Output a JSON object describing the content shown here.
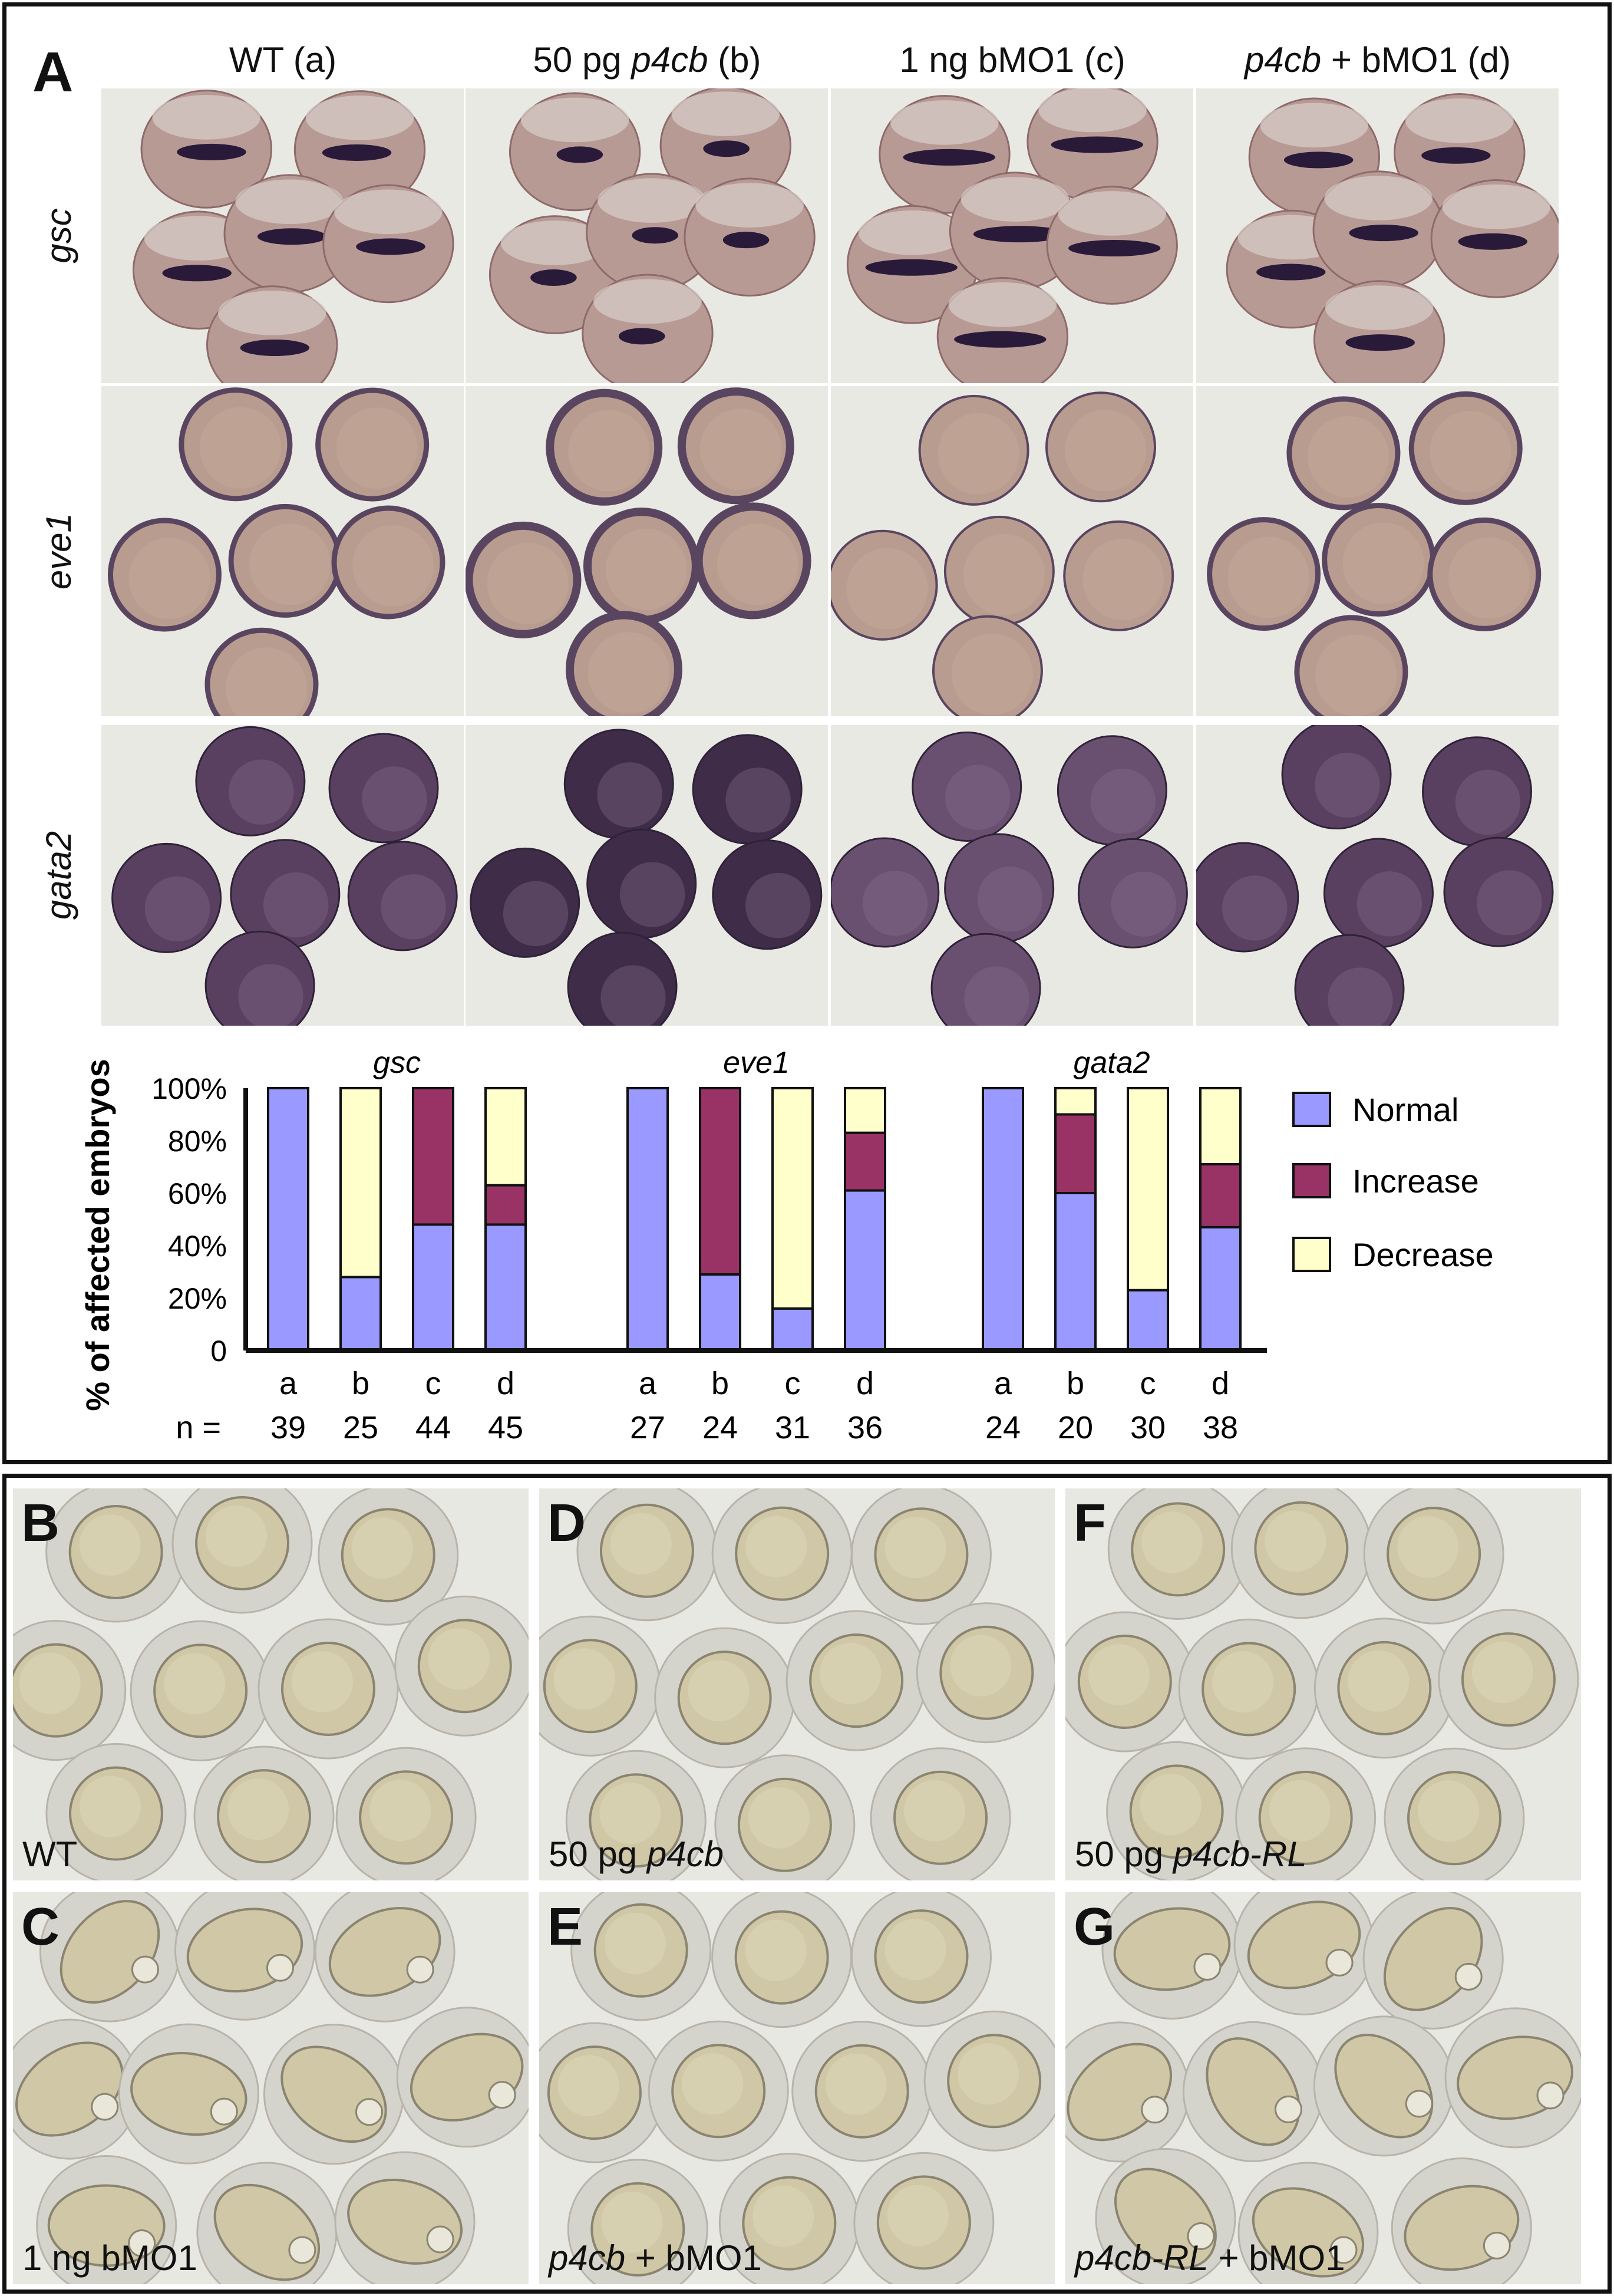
{
  "panel_a": {
    "label": "A",
    "columns": [
      {
        "pre": "WT (a)",
        "it": "",
        "post": ""
      },
      {
        "pre": "50 pg ",
        "it": "p4cb",
        "post": " (b)"
      },
      {
        "pre": "1 ng bMO1 (c)",
        "it": "",
        "post": ""
      },
      {
        "pre": "",
        "it": "p4cb",
        "post": " + bMO1 (d)"
      }
    ],
    "rows": [
      "gsc",
      "eve1",
      "gata2"
    ]
  },
  "chart_data": {
    "type": "bar",
    "stacked": true,
    "ylabel": "% of affected embryos",
    "y_ticks": [
      "100%",
      "80%",
      "60%",
      "40%",
      "20%",
      "0"
    ],
    "ylim": [
      0,
      100
    ],
    "n_prefix": "n =",
    "legend_position": "right",
    "legend": [
      {
        "name": "Normal",
        "color": "#9999ff"
      },
      {
        "name": "Increase",
        "color": "#993366"
      },
      {
        "name": "Decrease",
        "color": "#ffffcc"
      }
    ],
    "groups": [
      {
        "gene": "gsc",
        "bars": [
          {
            "cat": "a",
            "n": "39",
            "normal": 100,
            "increase": 0,
            "decrease": 0
          },
          {
            "cat": "b",
            "n": "25",
            "normal": 28,
            "increase": 0,
            "decrease": 72
          },
          {
            "cat": "c",
            "n": "44",
            "normal": 48,
            "increase": 52,
            "decrease": 0
          },
          {
            "cat": "d",
            "n": "45",
            "normal": 48,
            "increase": 15,
            "decrease": 37
          }
        ]
      },
      {
        "gene": "eve1",
        "bars": [
          {
            "cat": "a",
            "n": "27",
            "normal": 100,
            "increase": 0,
            "decrease": 0
          },
          {
            "cat": "b",
            "n": "24",
            "normal": 29,
            "increase": 71,
            "decrease": 0
          },
          {
            "cat": "c",
            "n": "31",
            "normal": 16,
            "increase": 0,
            "decrease": 84
          },
          {
            "cat": "d",
            "n": "36",
            "normal": 61,
            "increase": 22,
            "decrease": 17
          }
        ]
      },
      {
        "gene": "gata2",
        "bars": [
          {
            "cat": "a",
            "n": "24",
            "normal": 100,
            "increase": 0,
            "decrease": 0
          },
          {
            "cat": "b",
            "n": "20",
            "normal": 60,
            "increase": 30,
            "decrease": 10
          },
          {
            "cat": "c",
            "n": "30",
            "normal": 23,
            "increase": 0,
            "decrease": 77
          },
          {
            "cat": "d",
            "n": "38",
            "normal": 47,
            "increase": 24,
            "decrease": 29
          }
        ]
      }
    ]
  },
  "panels": [
    {
      "letter": "B",
      "pre": "WT",
      "it": "",
      "post": ""
    },
    {
      "letter": "D",
      "pre": "50 pg ",
      "it": "p4cb",
      "post": ""
    },
    {
      "letter": "F",
      "pre": "50 pg ",
      "it": "p4cb-RL",
      "post": ""
    },
    {
      "letter": "C",
      "pre": "1 ng bMO1",
      "it": "",
      "post": ""
    },
    {
      "letter": "E",
      "pre": "",
      "it": "p4cb",
      "post": " + bMO1"
    },
    {
      "letter": "G",
      "pre": "",
      "it": "p4cb-RL",
      "post": " + bMO1"
    }
  ],
  "colors": {
    "ish_bg": "#e9e9e4",
    "embryo_fill": "#b89a95",
    "gsc_stain": "#2a1a3a",
    "gata2_fill": "#5a4060",
    "live_bg": "#e8e8e2",
    "chorion": "#d4d4cc",
    "yolk": "#cfc7a6"
  }
}
